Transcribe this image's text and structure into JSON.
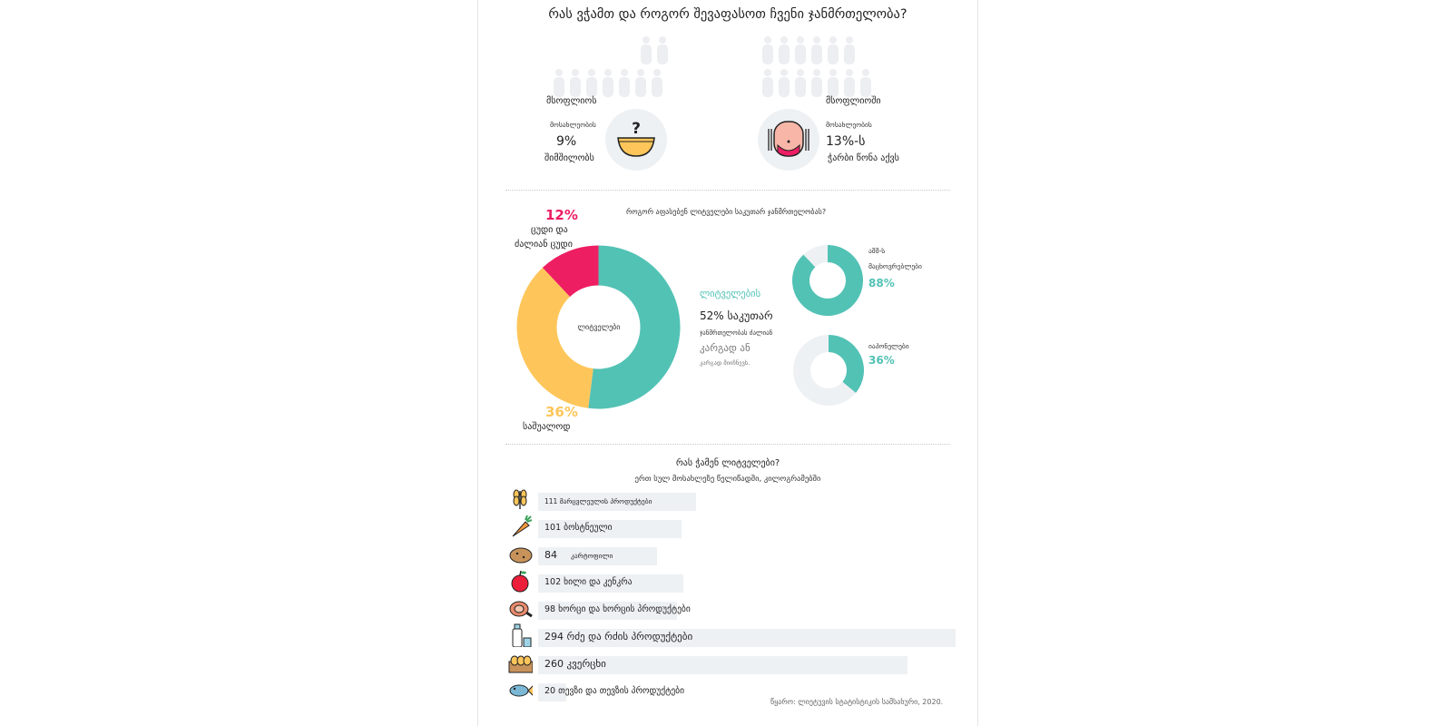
{
  "header": {
    "title": "რას ვჭამთ და როგორ შევაფასოთ ჩვენი ჯანმრთელობა?"
  },
  "left_stat": {
    "line1": "მსოფლიოს",
    "line2": "მოსახლეობის",
    "value": "9%",
    "line3": "შიმშილობს"
  },
  "right_stat": {
    "line1": "მსოფლიოში",
    "line2": "მოსახლეობის",
    "value": "13%-ს",
    "line3": "ჭარბი წონა აქვს"
  },
  "donut_section": {
    "question": "როგორ აფასებენ ლიტველები საკუთარ ჯანმრთელობას?",
    "center_label": "ლიტველები",
    "bad": {
      "pct": "12%",
      "line1": "ცუდი და",
      "line2": "ძალიან ცუდი"
    },
    "avg": {
      "pct": "36%",
      "line1": "საშუალოდ"
    },
    "good": {
      "line1": "ლიტველების",
      "line2": "52% საკუთარ",
      "line3": "ჯანმრთელობას ძალიან",
      "line4": "კარგად ან",
      "line5": "კარგად მიიჩნევს."
    },
    "usa": {
      "line1": "აშშ-ს",
      "line2": "მაცხოვრებლები",
      "pct": "88%"
    },
    "japan": {
      "line1": "იაპონელები",
      "pct": "36%"
    }
  },
  "colors": {
    "teal": "#52c2b5",
    "yellow": "#fec65a",
    "pink": "#ed1e62",
    "track": "#eef1f4",
    "person": "#eceef1"
  },
  "food_section": {
    "title": "რას ჭამენ ლიტველები?",
    "subtitle": "ერთ სულ მოსახლეზე წელიწადში, კილოგრამებში",
    "source": "წყარო: ლიეტუვის სტატისტიკის სამსახური, 2020."
  },
  "food_items": [
    {
      "label": "111 მარცვლეულის პროდუქტები",
      "icon": "wheat-icon"
    },
    {
      "label": "101 ბოსტნეული",
      "icon": "carrot-icon"
    },
    {
      "num": "84",
      "label": "კარტოფილი",
      "icon": "potato-icon"
    },
    {
      "label": "102 ხილი და კენკრა",
      "icon": "apple-icon"
    },
    {
      "label": "98 ხორცი და ხორცის პროდუქტები",
      "icon": "ham-icon"
    },
    {
      "label": "294 რძე და რძის პროდუქტები",
      "icon": "milk-icon"
    },
    {
      "label": "260 კვერცხი",
      "icon": "eggs-icon"
    },
    {
      "label": "20 თევზი და თევზის პროდუქტები",
      "icon": "fish-icon"
    }
  ],
  "chart_data": [
    {
      "type": "pie",
      "title": "როგორ აფასებენ ლიტველები საკუთარ ჯანმრთელობას?",
      "categories": [
        "კარგად ან ძალიან კარგად",
        "საშუალოდ",
        "ცუდი და ძალიან ცუდი"
      ],
      "values": [
        52,
        36,
        12
      ],
      "colors": [
        "#52c2b5",
        "#fec65a",
        "#ed1e62"
      ]
    },
    {
      "type": "pie",
      "categories": [
        "აშშ-ს მაცხოვრებლები"
      ],
      "values": [
        88
      ]
    },
    {
      "type": "pie",
      "categories": [
        "იაპონელები"
      ],
      "values": [
        36
      ]
    },
    {
      "type": "bar",
      "title": "რას ჭამენ ლიტველები?",
      "subtitle": "ერთ სულ მოსახლეზე წელიწადში, კილოგრამებში",
      "categories": [
        "მარცვლეულის პროდუქტები",
        "ბოსტნეული",
        "კარტოფილი",
        "ხილი და კენკრა",
        "ხორცი და ხორცის პროდუქტები",
        "რძე და რძის პროდუქტები",
        "კვერცხი",
        "თევზი და თევზის პროდუქტები"
      ],
      "values": [
        111,
        101,
        84,
        102,
        98,
        294,
        260,
        20
      ]
    }
  ]
}
